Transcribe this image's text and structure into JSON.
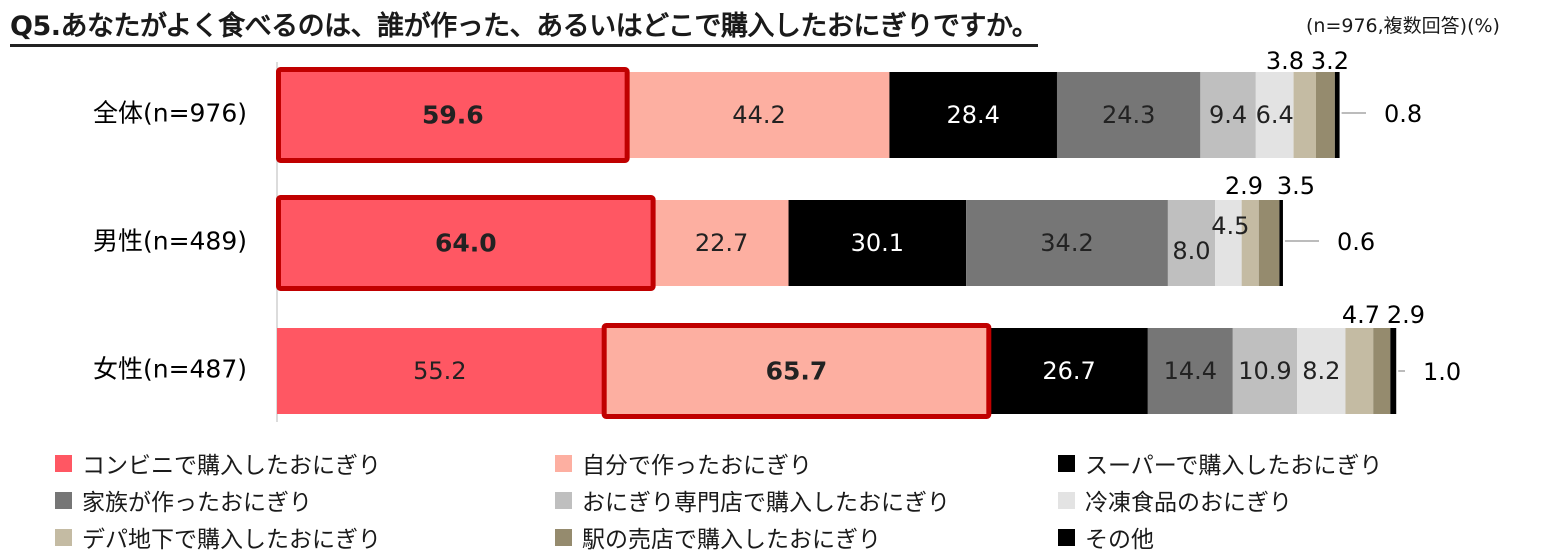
{
  "title": "Q5.あなたがよく食べるのは、誰が作った、あるいはどこで購入したおにぎりですか。",
  "subtitle": "(n=976,複数回答)(%)",
  "chart_data": {
    "type": "bar",
    "orientation": "horizontal",
    "stacked": true,
    "categories": [
      "全体(n=976)",
      "男性(n=489)",
      "女性(n=487)"
    ],
    "series": [
      {
        "name": "コンビニで購入したおにぎり",
        "color": "#FF5763",
        "values": [
          59.6,
          64.0,
          55.2
        ]
      },
      {
        "name": "自分で作ったおにぎり",
        "color": "#FDAFA1",
        "values": [
          44.2,
          22.7,
          65.7
        ]
      },
      {
        "name": "スーパーで購入したおにぎり",
        "color": "#000000",
        "values": [
          28.4,
          30.1,
          26.7
        ]
      },
      {
        "name": "家族が作ったおにぎり",
        "color": "#767676",
        "values": [
          24.3,
          34.2,
          14.4
        ]
      },
      {
        "name": "おにぎり専門店で購入したおにぎり",
        "color": "#BFBFBF",
        "values": [
          9.4,
          8.0,
          10.9
        ]
      },
      {
        "name": "冷凍食品のおにぎり",
        "color": "#E3E3E3",
        "values": [
          6.4,
          4.5,
          8.2
        ]
      },
      {
        "name": "デパ地下で購入したおにぎり",
        "color": "#C4BBA3",
        "values": [
          3.8,
          2.9,
          4.7
        ]
      },
      {
        "name": "駅の売店で購入したおにぎり",
        "color": "#958B6E",
        "values": [
          3.2,
          3.5,
          2.9
        ]
      },
      {
        "name": "その他",
        "color": "#000000",
        "values": [
          0.8,
          0.6,
          1.0
        ]
      }
    ],
    "data_labels": [
      [
        "59.6",
        "44.2",
        "28.4",
        "24.3",
        "9.4",
        "6.4",
        "3.8",
        "3.2",
        "0.8"
      ],
      [
        "64.0",
        "22.7",
        "30.1",
        "34.2",
        "8.0",
        "4.5",
        "2.9",
        "3.5",
        "0.6"
      ],
      [
        "55.2",
        "65.7",
        "26.7",
        "14.4",
        "10.9",
        "8.2",
        "4.7",
        "2.9",
        "1.0"
      ]
    ],
    "highlighted": [
      {
        "category_index": 0,
        "series_index": 0
      },
      {
        "category_index": 1,
        "series_index": 0
      },
      {
        "category_index": 2,
        "series_index": 1
      }
    ],
    "highlight_color": "#C00000",
    "legend_position": "bottom",
    "grid": false
  }
}
